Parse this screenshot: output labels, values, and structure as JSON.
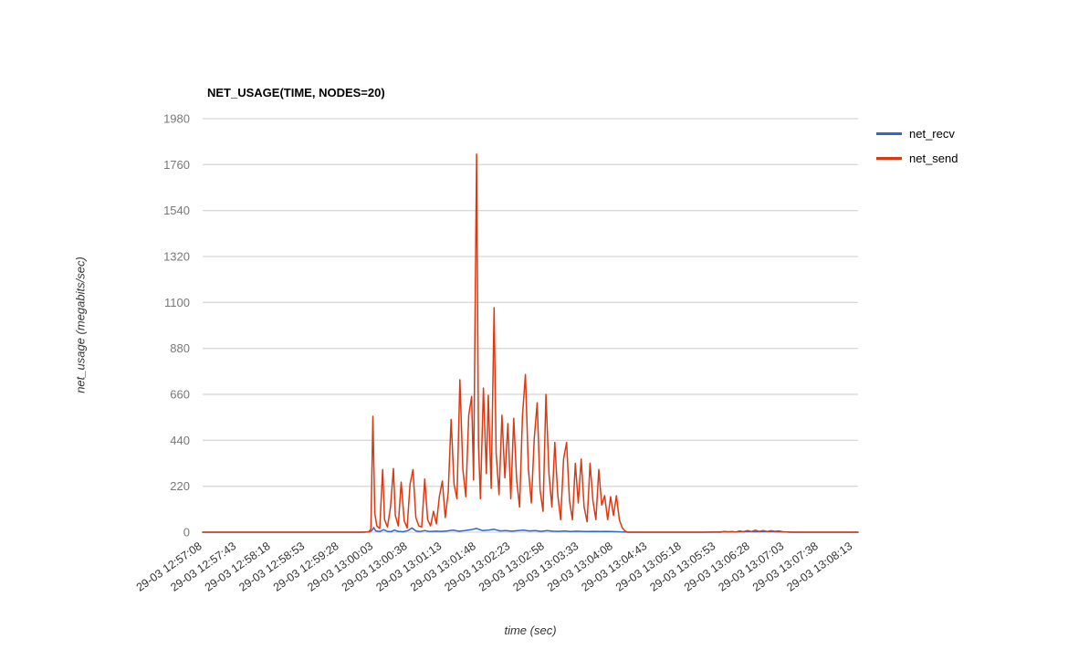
{
  "chart_data": {
    "type": "line",
    "title": "NET_USAGE(TIME, NODES=20)",
    "xlabel": "time (sec)",
    "ylabel": "net_usage (megabits/sec)",
    "background_color": "#ffffff",
    "gridline_color": "#cccccc",
    "grid": "horizontal-only",
    "legend_position": "right",
    "ylim": [
      0,
      1980
    ],
    "y_ticks": [
      0,
      220,
      440,
      660,
      880,
      1100,
      1320,
      1540,
      1760,
      1980
    ],
    "xlim": [
      0,
      670
    ],
    "x_tick_interval_sec": 35,
    "x_ticks": [
      {
        "t": 0,
        "label": "29-03 12:57:08"
      },
      {
        "t": 35,
        "label": "29-03 12:57:43"
      },
      {
        "t": 70,
        "label": "29-03 12:58:18"
      },
      {
        "t": 105,
        "label": "29-03 12:58:53"
      },
      {
        "t": 140,
        "label": "29-03 12:59:28"
      },
      {
        "t": 175,
        "label": "29-03 13:00:03"
      },
      {
        "t": 210,
        "label": "29-03 13:00:38"
      },
      {
        "t": 245,
        "label": "29-03 13:01:13"
      },
      {
        "t": 280,
        "label": "29-03 13:01:48"
      },
      {
        "t": 315,
        "label": "29-03 13:02:23"
      },
      {
        "t": 350,
        "label": "29-03 13:02:58"
      },
      {
        "t": 385,
        "label": "29-03 13:03:33"
      },
      {
        "t": 420,
        "label": "29-03 13:04:08"
      },
      {
        "t": 455,
        "label": "29-03 13:04:43"
      },
      {
        "t": 490,
        "label": "29-03 13:05:18"
      },
      {
        "t": 525,
        "label": "29-03 13:05:53"
      },
      {
        "t": 560,
        "label": "29-03 13:06:28"
      },
      {
        "t": 595,
        "label": "29-03 13:07:03"
      },
      {
        "t": 630,
        "label": "29-03 13:07:38"
      },
      {
        "t": 665,
        "label": "29-03 13:08:13"
      }
    ],
    "series": [
      {
        "name": "net_recv",
        "color": "#3366cc",
        "points": [
          [
            0,
            0
          ],
          [
            40,
            0
          ],
          [
            80,
            0
          ],
          [
            120,
            0
          ],
          [
            160,
            0
          ],
          [
            170,
            1
          ],
          [
            173,
            8
          ],
          [
            175,
            22
          ],
          [
            177,
            6
          ],
          [
            181,
            3
          ],
          [
            185,
            12
          ],
          [
            189,
            4
          ],
          [
            193,
            3
          ],
          [
            196,
            10
          ],
          [
            200,
            4
          ],
          [
            205,
            2
          ],
          [
            210,
            8
          ],
          [
            214,
            20
          ],
          [
            218,
            6
          ],
          [
            222,
            3
          ],
          [
            227,
            8
          ],
          [
            232,
            3
          ],
          [
            238,
            5
          ],
          [
            244,
            4
          ],
          [
            250,
            6
          ],
          [
            256,
            10
          ],
          [
            262,
            5
          ],
          [
            268,
            8
          ],
          [
            274,
            12
          ],
          [
            280,
            18
          ],
          [
            286,
            8
          ],
          [
            292,
            10
          ],
          [
            298,
            14
          ],
          [
            304,
            6
          ],
          [
            310,
            8
          ],
          [
            316,
            5
          ],
          [
            322,
            8
          ],
          [
            328,
            10
          ],
          [
            334,
            6
          ],
          [
            340,
            8
          ],
          [
            346,
            4
          ],
          [
            352,
            8
          ],
          [
            358,
            5
          ],
          [
            364,
            4
          ],
          [
            370,
            6
          ],
          [
            376,
            3
          ],
          [
            382,
            5
          ],
          [
            388,
            4
          ],
          [
            394,
            3
          ],
          [
            400,
            4
          ],
          [
            406,
            3
          ],
          [
            412,
            4
          ],
          [
            418,
            3
          ],
          [
            424,
            2
          ],
          [
            430,
            1
          ],
          [
            436,
            0
          ],
          [
            470,
            0
          ],
          [
            510,
            0
          ],
          [
            535,
            2
          ],
          [
            545,
            1
          ],
          [
            555,
            3
          ],
          [
            565,
            2
          ],
          [
            575,
            3
          ],
          [
            585,
            2
          ],
          [
            595,
            1
          ],
          [
            605,
            0
          ],
          [
            640,
            0
          ],
          [
            670,
            0
          ]
        ]
      },
      {
        "name": "net_send",
        "color": "#dc3912",
        "points": [
          [
            0,
            0
          ],
          [
            30,
            0
          ],
          [
            60,
            0
          ],
          [
            90,
            0
          ],
          [
            120,
            0
          ],
          [
            150,
            0
          ],
          [
            165,
            0
          ],
          [
            170,
            2
          ],
          [
            172,
            15
          ],
          [
            174,
            555
          ],
          [
            176,
            90
          ],
          [
            178,
            30
          ],
          [
            181,
            18
          ],
          [
            184,
            300
          ],
          [
            186,
            60
          ],
          [
            189,
            25
          ],
          [
            192,
            120
          ],
          [
            195,
            305
          ],
          [
            197,
            80
          ],
          [
            200,
            30
          ],
          [
            203,
            240
          ],
          [
            206,
            55
          ],
          [
            209,
            20
          ],
          [
            212,
            230
          ],
          [
            215,
            300
          ],
          [
            218,
            70
          ],
          [
            221,
            30
          ],
          [
            224,
            25
          ],
          [
            227,
            255
          ],
          [
            230,
            60
          ],
          [
            233,
            30
          ],
          [
            236,
            100
          ],
          [
            239,
            40
          ],
          [
            242,
            170
          ],
          [
            245,
            245
          ],
          [
            248,
            70
          ],
          [
            251,
            190
          ],
          [
            254,
            540
          ],
          [
            257,
            230
          ],
          [
            260,
            160
          ],
          [
            263,
            730
          ],
          [
            266,
            300
          ],
          [
            269,
            170
          ],
          [
            272,
            560
          ],
          [
            275,
            650
          ],
          [
            277,
            250
          ],
          [
            280,
            1810
          ],
          [
            282,
            420
          ],
          [
            284,
            160
          ],
          [
            287,
            690
          ],
          [
            290,
            280
          ],
          [
            292,
            655
          ],
          [
            295,
            210
          ],
          [
            298,
            1075
          ],
          [
            300,
            380
          ],
          [
            303,
            180
          ],
          [
            306,
            560
          ],
          [
            309,
            260
          ],
          [
            312,
            520
          ],
          [
            315,
            160
          ],
          [
            318,
            545
          ],
          [
            321,
            250
          ],
          [
            324,
            120
          ],
          [
            327,
            560
          ],
          [
            330,
            755
          ],
          [
            333,
            300
          ],
          [
            336,
            140
          ],
          [
            339,
            450
          ],
          [
            342,
            620
          ],
          [
            345,
            200
          ],
          [
            348,
            100
          ],
          [
            351,
            660
          ],
          [
            354,
            280
          ],
          [
            357,
            120
          ],
          [
            360,
            430
          ],
          [
            363,
            180
          ],
          [
            366,
            60
          ],
          [
            369,
            350
          ],
          [
            372,
            430
          ],
          [
            375,
            150
          ],
          [
            378,
            60
          ],
          [
            381,
            330
          ],
          [
            384,
            140
          ],
          [
            387,
            350
          ],
          [
            390,
            120
          ],
          [
            393,
            50
          ],
          [
            396,
            330
          ],
          [
            399,
            150
          ],
          [
            402,
            60
          ],
          [
            405,
            300
          ],
          [
            408,
            130
          ],
          [
            411,
            175
          ],
          [
            414,
            60
          ],
          [
            417,
            170
          ],
          [
            420,
            80
          ],
          [
            423,
            175
          ],
          [
            426,
            60
          ],
          [
            429,
            20
          ],
          [
            432,
            5
          ],
          [
            435,
            0
          ],
          [
            460,
            0
          ],
          [
            490,
            0
          ],
          [
            520,
            0
          ],
          [
            530,
            0
          ],
          [
            533,
            4
          ],
          [
            537,
            1
          ],
          [
            541,
            3
          ],
          [
            545,
            1
          ],
          [
            549,
            6
          ],
          [
            553,
            2
          ],
          [
            557,
            8
          ],
          [
            561,
            3
          ],
          [
            565,
            9
          ],
          [
            569,
            4
          ],
          [
            573,
            8
          ],
          [
            577,
            3
          ],
          [
            581,
            7
          ],
          [
            585,
            4
          ],
          [
            589,
            6
          ],
          [
            593,
            2
          ],
          [
            597,
            1
          ],
          [
            600,
            0
          ],
          [
            620,
            0
          ],
          [
            645,
            0
          ],
          [
            670,
            0
          ]
        ]
      }
    ]
  }
}
